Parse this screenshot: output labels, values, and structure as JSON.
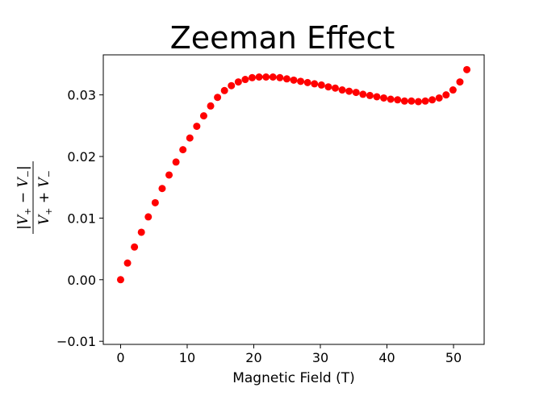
{
  "chart_data": {
    "type": "scatter",
    "title": "Zeeman Effect",
    "xlabel": "Magnetic Field (T)",
    "ylabel": "|V+ − V−| / (V+ + V−)",
    "ylabel_parts": {
      "num_bar_l": "|",
      "num_v1": "V",
      "num_sub1": "+",
      "num_op": " − ",
      "num_v2": "V",
      "num_sub2": "−",
      "num_bar_r": "|",
      "den_v1": "V",
      "den_sub1": "+",
      "den_op": " + ",
      "den_v2": "V",
      "den_sub2": "−"
    },
    "xlim": [
      -2.6,
      54.6
    ],
    "ylim": [
      -0.0105,
      0.0365
    ],
    "xticks": [
      0,
      10,
      20,
      30,
      40,
      50
    ],
    "xtick_labels": [
      "0",
      "10",
      "20",
      "30",
      "40",
      "50"
    ],
    "yticks": [
      -0.01,
      0.0,
      0.01,
      0.02,
      0.03
    ],
    "ytick_labels": [
      "−0.01",
      "0.00",
      "0.01",
      "0.02",
      "0.03"
    ],
    "grid": false,
    "marker_color": "#ff0000",
    "series": [
      {
        "name": "data",
        "x": [
          0.0,
          1.04,
          2.08,
          3.12,
          4.16,
          5.2,
          6.24,
          7.28,
          8.32,
          9.36,
          10.4,
          11.44,
          12.48,
          13.52,
          14.56,
          15.6,
          16.64,
          17.68,
          18.72,
          19.76,
          20.8,
          21.84,
          22.88,
          23.92,
          24.96,
          26.0,
          27.04,
          28.08,
          29.12,
          30.16,
          31.2,
          32.24,
          33.28,
          34.32,
          35.36,
          36.4,
          37.44,
          38.48,
          39.52,
          40.56,
          41.6,
          42.64,
          43.68,
          44.72,
          45.76,
          46.8,
          47.84,
          48.88,
          49.92,
          50.96,
          52.0
        ],
        "y": [
          0.0,
          0.0027,
          0.0053,
          0.0077,
          0.0102,
          0.0125,
          0.0148,
          0.017,
          0.0191,
          0.0211,
          0.023,
          0.0249,
          0.0266,
          0.0282,
          0.0296,
          0.0307,
          0.0315,
          0.0321,
          0.0325,
          0.0328,
          0.0329,
          0.0329,
          0.0329,
          0.0328,
          0.0326,
          0.0324,
          0.0322,
          0.032,
          0.0318,
          0.0316,
          0.0313,
          0.0311,
          0.0308,
          0.0306,
          0.0304,
          0.0301,
          0.0299,
          0.0297,
          0.0295,
          0.0293,
          0.0292,
          0.029,
          0.029,
          0.0289,
          0.029,
          0.0292,
          0.0295,
          0.03,
          0.0308,
          0.0321,
          0.0341
        ]
      }
    ]
  }
}
